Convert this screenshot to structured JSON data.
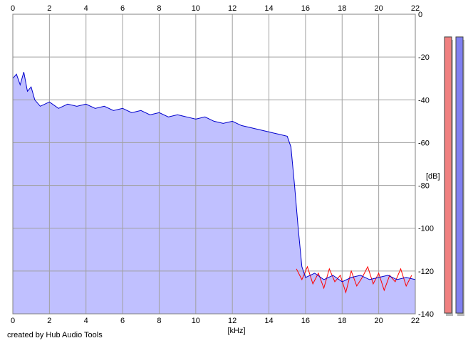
{
  "chart_data": {
    "type": "area",
    "xlabel": "[kHz]",
    "ylabel": "[dB]",
    "xlim": [
      0,
      22
    ],
    "ylim": [
      -140,
      0
    ],
    "x_ticks": [
      "0",
      "2",
      "4",
      "6",
      "8",
      "10",
      "12",
      "14",
      "16",
      "18",
      "20",
      "22"
    ],
    "y_ticks": [
      "0",
      "-20",
      "-40",
      "-60",
      "-80",
      "-100",
      "-120",
      "-140"
    ],
    "grid": true,
    "series": [
      {
        "channel": "left",
        "color": "#ff0000",
        "points": [
          [
            15.5,
            -119
          ],
          [
            15.8,
            -124
          ],
          [
            16.1,
            -118
          ],
          [
            16.4,
            -126
          ],
          [
            16.7,
            -121
          ],
          [
            17.0,
            -128
          ],
          [
            17.3,
            -119
          ],
          [
            17.6,
            -125
          ],
          [
            17.9,
            -122
          ],
          [
            18.2,
            -130
          ],
          [
            18.5,
            -120
          ],
          [
            18.8,
            -127
          ],
          [
            19.1,
            -123
          ],
          [
            19.4,
            -118
          ],
          [
            19.7,
            -126
          ],
          [
            20.0,
            -121
          ],
          [
            20.3,
            -129
          ],
          [
            20.6,
            -122
          ],
          [
            20.9,
            -125
          ],
          [
            21.2,
            -119
          ],
          [
            21.5,
            -127
          ],
          [
            21.8,
            -122
          ]
        ]
      },
      {
        "channel": "right",
        "color": "#0000cc",
        "fill": "#c0c0ff",
        "points": [
          [
            0.0,
            -30
          ],
          [
            0.2,
            -28
          ],
          [
            0.4,
            -33
          ],
          [
            0.6,
            -27
          ],
          [
            0.8,
            -36
          ],
          [
            1.0,
            -34
          ],
          [
            1.2,
            -40
          ],
          [
            1.5,
            -43
          ],
          [
            2.0,
            -41
          ],
          [
            2.5,
            -44
          ],
          [
            3.0,
            -42
          ],
          [
            3.5,
            -43
          ],
          [
            4.0,
            -42
          ],
          [
            4.5,
            -44
          ],
          [
            5.0,
            -43
          ],
          [
            5.5,
            -45
          ],
          [
            6.0,
            -44
          ],
          [
            6.5,
            -46
          ],
          [
            7.0,
            -45
          ],
          [
            7.5,
            -47
          ],
          [
            8.0,
            -46
          ],
          [
            8.5,
            -48
          ],
          [
            9.0,
            -47
          ],
          [
            9.5,
            -48
          ],
          [
            10.0,
            -49
          ],
          [
            10.5,
            -48
          ],
          [
            11.0,
            -50
          ],
          [
            11.5,
            -51
          ],
          [
            12.0,
            -50
          ],
          [
            12.5,
            -52
          ],
          [
            13.0,
            -53
          ],
          [
            13.5,
            -54
          ],
          [
            14.0,
            -55
          ],
          [
            14.5,
            -56
          ],
          [
            15.0,
            -57
          ],
          [
            15.2,
            -62
          ],
          [
            15.4,
            -80
          ],
          [
            15.6,
            -100
          ],
          [
            15.8,
            -118
          ],
          [
            16.0,
            -123
          ],
          [
            16.5,
            -121
          ],
          [
            17.0,
            -124
          ],
          [
            17.5,
            -122
          ],
          [
            18.0,
            -125
          ],
          [
            18.5,
            -123
          ],
          [
            19.0,
            -122
          ],
          [
            19.5,
            -124
          ],
          [
            20.0,
            -123
          ],
          [
            20.5,
            -122
          ],
          [
            21.0,
            -124
          ],
          [
            21.5,
            -123
          ],
          [
            22.0,
            -124
          ]
        ]
      }
    ],
    "level_meters": [
      {
        "channel": "left",
        "color": "#f08080",
        "level": 0.98
      },
      {
        "channel": "right",
        "color": "#8080f0",
        "level": 0.98
      }
    ]
  },
  "credit": "created by Hub Audio Tools"
}
